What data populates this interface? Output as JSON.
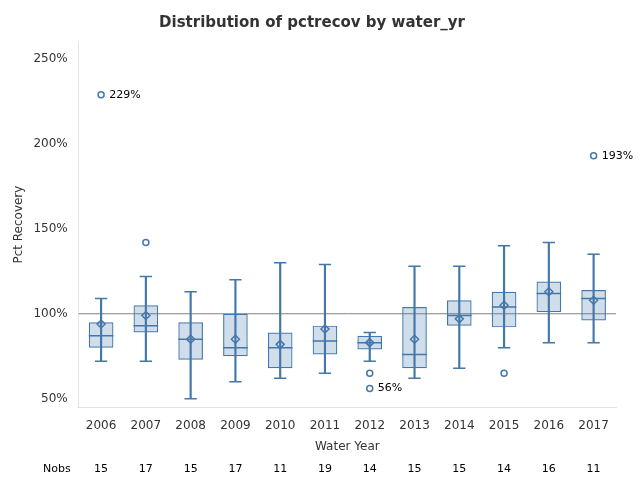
{
  "chart_data": {
    "type": "box",
    "title": "Distribution of pctrecov by water_yr",
    "xlabel": "Water Year",
    "ylabel": "Pct Recovery",
    "categories": [
      "2006",
      "2007",
      "2008",
      "2009",
      "2010",
      "2011",
      "2012",
      "2013",
      "2014",
      "2015",
      "2016",
      "2017"
    ],
    "q1": [
      80,
      89,
      73,
      75,
      68,
      76,
      79,
      68,
      93,
      92,
      101,
      96
    ],
    "median": [
      87,
      93,
      85,
      80,
      80,
      84,
      83,
      76,
      99,
      104,
      112,
      109
    ],
    "q3": [
      95,
      105,
      95,
      100,
      89,
      93,
      87,
      104,
      108,
      113,
      119,
      114
    ],
    "whislo": [
      72,
      72,
      50,
      60,
      62,
      65,
      72,
      62,
      68,
      80,
      83,
      83
    ],
    "whishi": [
      109,
      122,
      113,
      120,
      130,
      129,
      89,
      128,
      128,
      140,
      142,
      135
    ],
    "mean": [
      94,
      99,
      85,
      85,
      82,
      91,
      83,
      85,
      97,
      105,
      113,
      108
    ],
    "fliers": [
      [
        229
      ],
      [
        142
      ],
      [],
      [],
      [],
      [],
      [
        56,
        65
      ],
      [],
      [],
      [
        65
      ],
      [],
      [
        193
      ]
    ],
    "nobs_label": "Nobs",
    "nobs": [
      15,
      17,
      15,
      17,
      11,
      19,
      14,
      15,
      15,
      14,
      16,
      11
    ],
    "annotations": [
      {
        "category": "2006",
        "value": 229,
        "text": "229%"
      },
      {
        "category": "2017",
        "value": 193,
        "text": "193%"
      },
      {
        "category": "2012",
        "value": 56,
        "text": "56%"
      }
    ],
    "hline": 100,
    "color": "#4477aa",
    "ylim": [
      45,
      260
    ],
    "yticks": [
      {
        "value": 50,
        "label": "50%"
      },
      {
        "value": 100,
        "label": "100%"
      },
      {
        "value": 150,
        "label": "150%"
      },
      {
        "value": 200,
        "label": "200%"
      },
      {
        "value": 250,
        "label": "250%"
      }
    ],
    "grid": false
  }
}
